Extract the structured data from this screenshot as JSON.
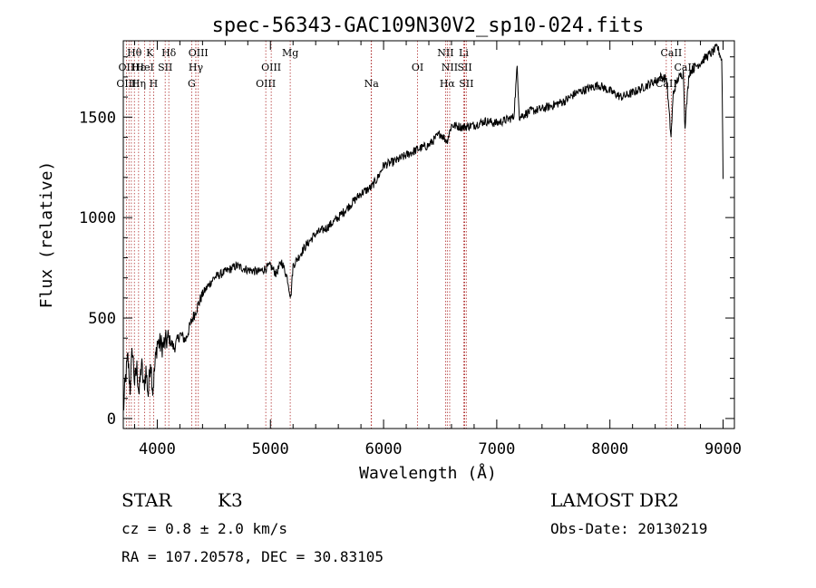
{
  "chart_data": {
    "type": "line",
    "title": "spec-56343-GAC109N30V2_sp10-024.fits",
    "xlabel": "Wavelength (Å)",
    "ylabel": "Flux (relative)",
    "xlim": [
      3700,
      9100
    ],
    "ylim": [
      -50,
      1880
    ],
    "grid": false,
    "x_ticks": [
      {
        "value": 4000,
        "label": "4000"
      },
      {
        "value": 5000,
        "label": "5000"
      },
      {
        "value": 6000,
        "label": "6000"
      },
      {
        "value": 7000,
        "label": "7000"
      },
      {
        "value": 8000,
        "label": "8000"
      },
      {
        "value": 9000,
        "label": "9000"
      }
    ],
    "y_ticks": [
      {
        "value": 0,
        "label": "0"
      },
      {
        "value": 500,
        "label": "500"
      },
      {
        "value": 1000,
        "label": "1000"
      },
      {
        "value": 1500,
        "label": "1500"
      }
    ],
    "series": [
      {
        "color": "#000000",
        "x": [
          3700,
          3720,
          3740,
          3760,
          3780,
          3800,
          3820,
          3840,
          3860,
          3880,
          3900,
          3920,
          3940,
          3960,
          3980,
          4000,
          4050,
          4100,
          4150,
          4200,
          4250,
          4300,
          4350,
          4400,
          4500,
          4600,
          4700,
          4800,
          4900,
          5000,
          5050,
          5100,
          5150,
          5180,
          5200,
          5300,
          5400,
          5500,
          5600,
          5700,
          5800,
          5890,
          5950,
          6000,
          6100,
          6200,
          6300,
          6400,
          6500,
          6560,
          6600,
          6700,
          6800,
          6900,
          7000,
          7100,
          7150,
          7180,
          7200,
          7300,
          7400,
          7500,
          7600,
          7700,
          7800,
          7900,
          8000,
          8100,
          8200,
          8300,
          8400,
          8450,
          8500,
          8540,
          8560,
          8600,
          8650,
          8662,
          8700,
          8750,
          8800,
          8850,
          8900,
          8950,
          8990,
          9000
        ],
        "y": [
          30,
          200,
          300,
          150,
          350,
          180,
          250,
          120,
          280,
          150,
          240,
          120,
          300,
          140,
          260,
          380,
          360,
          400,
          350,
          420,
          390,
          480,
          550,
          620,
          700,
          730,
          760,
          740,
          730,
          760,
          720,
          780,
          700,
          600,
          760,
          850,
          920,
          950,
          1000,
          1060,
          1120,
          1150,
          1200,
          1260,
          1280,
          1310,
          1340,
          1360,
          1420,
          1380,
          1460,
          1450,
          1460,
          1480,
          1470,
          1490,
          1500,
          1750,
          1500,
          1530,
          1540,
          1560,
          1580,
          1620,
          1640,
          1660,
          1630,
          1600,
          1620,
          1650,
          1680,
          1700,
          1690,
          1400,
          1620,
          1690,
          1720,
          1450,
          1720,
          1750,
          1770,
          1800,
          1820,
          1850,
          1780,
          1200
        ]
      }
    ],
    "spectral_lines": [
      {
        "label": "Hθ",
        "wavelength": 3798,
        "row": 1
      },
      {
        "label": "OII",
        "wavelength": 3727,
        "row": 2
      },
      {
        "label": "OIII",
        "wavelength": 3727,
        "row": 3
      },
      {
        "label": "Hε",
        "wavelength": 3835,
        "row": 2
      },
      {
        "label": "Hη",
        "wavelength": 3835,
        "row": 3
      },
      {
        "label": "K",
        "wavelength": 3934,
        "row": 1
      },
      {
        "label": "HeI",
        "wavelength": 3889,
        "row": 2
      },
      {
        "label": "H",
        "wavelength": 3968,
        "row": 3
      },
      {
        "label": "Hδ",
        "wavelength": 4102,
        "row": 1
      },
      {
        "label": "SII",
        "wavelength": 4070,
        "row": 2
      },
      {
        "label": "OIII",
        "wavelength": 4363,
        "row": 1
      },
      {
        "label": "Hγ",
        "wavelength": 4341,
        "row": 2
      },
      {
        "label": "G",
        "wavelength": 4304,
        "row": 3
      },
      {
        "label": "OIII",
        "wavelength": 5007,
        "row": 2
      },
      {
        "label": "OIII",
        "wavelength": 4959,
        "row": 3
      },
      {
        "label": "Mg",
        "wavelength": 5175,
        "row": 1
      },
      {
        "label": "Na",
        "wavelength": 5893,
        "row": 3
      },
      {
        "label": "OI",
        "wavelength": 6300,
        "row": 2
      },
      {
        "label": "NII",
        "wavelength": 6548,
        "row": 1
      },
      {
        "label": "Li",
        "wavelength": 6708,
        "row": 1
      },
      {
        "label": "NII",
        "wavelength": 6584,
        "row": 2
      },
      {
        "label": "SII",
        "wavelength": 6717,
        "row": 2
      },
      {
        "label": "Hα",
        "wavelength": 6563,
        "row": 3
      },
      {
        "label": "SII",
        "wavelength": 6731,
        "row": 3
      },
      {
        "label": "CaII",
        "wavelength": 8542,
        "row": 1
      },
      {
        "label": "CaII",
        "wavelength": 8662,
        "row": 2
      },
      {
        "label": "CaII",
        "wavelength": 8498,
        "row": 3
      }
    ],
    "extra_line_markers": [
      3750,
      3771,
      3889,
      4340,
      5890,
      6563,
      6716
    ]
  },
  "info": {
    "object_class": "STAR",
    "subclass": "K3",
    "survey": "LAMOST DR2",
    "redshift": "cz = 0.8 ± 2.0 km/s",
    "obs_date": "Obs-Date: 20130219",
    "coords": "RA = 107.20578, DEC =  30.83105"
  },
  "colors": {
    "spectrum": "#000000",
    "line_markers": "#b03030",
    "axes": "#000000"
  }
}
